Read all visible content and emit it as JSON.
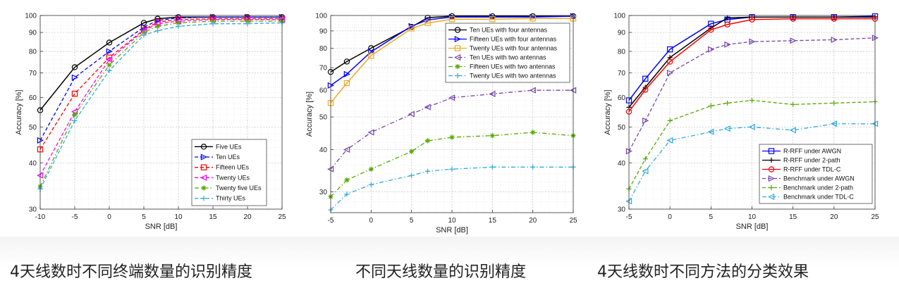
{
  "captions": [
    "4天线数时不同终端数量的识别精度",
    "不同天线数量的识别精度",
    "4天线数时不同方法的分类效果"
  ],
  "chart_data": [
    {
      "type": "line",
      "xlabel": "SNR [dB]",
      "ylabel": "Accuracy [%]",
      "y_scale": "log",
      "xlim": [
        -10,
        25
      ],
      "ylim": [
        30,
        100
      ],
      "x_ticks": [
        -10,
        -5,
        0,
        5,
        10,
        15,
        20,
        25
      ],
      "y_ticks": [
        30,
        40,
        50,
        60,
        70,
        80,
        90,
        100
      ],
      "grid": true,
      "legend_position": "bottom-right",
      "x": [
        -10,
        -5,
        0,
        5,
        7,
        10,
        15,
        20,
        25
      ],
      "series": [
        {
          "name": "Five UEs",
          "color": "#000000",
          "line": "solid",
          "marker": "circle",
          "values": [
            55.5,
            72.5,
            84.5,
            95.5,
            98,
            99,
            99,
            99,
            99
          ]
        },
        {
          "name": "Ten UEs",
          "color": "#0000ff",
          "line": "dash",
          "marker": "triangle-right",
          "values": [
            46,
            68,
            80,
            93,
            97,
            98.5,
            99,
            99,
            99
          ]
        },
        {
          "name": "Fifteen UEs",
          "color": "#ff0000",
          "line": "dash",
          "marker": "square",
          "values": [
            43.5,
            61.5,
            77,
            91.5,
            96,
            97.5,
            98,
            98,
            98
          ]
        },
        {
          "name": "Twenty UEs",
          "color": "#ff00ff",
          "line": "dash",
          "marker": "triangle-left",
          "values": [
            37,
            55,
            76,
            91,
            95,
            96.5,
            97.5,
            97.5,
            97.5
          ]
        },
        {
          "name": "Twenty five UEs",
          "color": "#55aa00",
          "line": "dashdot",
          "marker": "star",
          "values": [
            34.5,
            54,
            73.5,
            90,
            93.5,
            95.5,
            96.5,
            96.5,
            96.5
          ]
        },
        {
          "name": "Thirty UEs",
          "color": "#33aadd",
          "line": "dash",
          "marker": "plus",
          "values": [
            34,
            52,
            71,
            88.5,
            91,
            93.5,
            95,
            95,
            95.5
          ]
        }
      ]
    },
    {
      "type": "line",
      "xlabel": "SNR [dB]",
      "ylabel": "Accuracy [%]",
      "y_scale": "log",
      "xlim": [
        -5,
        25
      ],
      "ylim": [
        26,
        100
      ],
      "x_ticks": [
        -5,
        0,
        5,
        10,
        15,
        20,
        25
      ],
      "y_ticks": [
        30,
        40,
        50,
        60,
        70,
        80,
        90,
        100
      ],
      "grid": true,
      "legend_position": "top-right",
      "x": [
        -5,
        -3,
        0,
        5,
        7,
        10,
        15,
        20,
        25
      ],
      "series": [
        {
          "name": "Ten UEs with four antennas",
          "color": "#000000",
          "line": "solid",
          "marker": "circle",
          "values": [
            68,
            73,
            80,
            92.5,
            98.5,
            99.5,
            99.5,
            99.5,
            99.5
          ]
        },
        {
          "name": "Fifteen UEs with four antennas",
          "color": "#0000ff",
          "line": "solid",
          "marker": "triangle-right",
          "values": [
            62,
            67,
            78,
            93,
            97,
            99,
            99,
            99,
            99.5
          ]
        },
        {
          "name": "Twenty UEs with four antennas",
          "color": "#eeaa22",
          "line": "solid",
          "marker": "square",
          "values": [
            55,
            63,
            76,
            91.5,
            95,
            97.5,
            97.5,
            98,
            98
          ]
        },
        {
          "name": "Ten UEs with two antennas",
          "color": "#7744aa",
          "line": "dashdot",
          "marker": "triangle-left",
          "values": [
            35,
            40,
            45,
            51,
            53.5,
            57,
            58.5,
            60,
            60
          ]
        },
        {
          "name": "Fifteen UEs with two antennas",
          "color": "#55aa00",
          "line": "dashdot",
          "marker": "star",
          "values": [
            29,
            32.5,
            35,
            39.5,
            42.5,
            43.5,
            44,
            45,
            44
          ]
        },
        {
          "name": "Twenty UEs with two antennas",
          "color": "#33aadd",
          "line": "dashdot",
          "marker": "plus",
          "values": [
            26.5,
            29.5,
            31.5,
            33.5,
            34.5,
            35,
            35.5,
            35.5,
            35.5
          ]
        }
      ]
    },
    {
      "type": "line",
      "xlabel": "SNR [dB]",
      "ylabel": "Accuracy [%]",
      "y_scale": "log",
      "xlim": [
        -5,
        25
      ],
      "ylim": [
        30,
        100
      ],
      "x_ticks": [
        -5,
        0,
        5,
        10,
        15,
        20,
        25
      ],
      "y_ticks": [
        30,
        40,
        50,
        60,
        70,
        80,
        90,
        100
      ],
      "grid": true,
      "legend_position": "bottom-right",
      "x": [
        -5,
        -3,
        0,
        5,
        7,
        10,
        15,
        20,
        25
      ],
      "series": [
        {
          "name": "R-RFF under AWGN",
          "color": "#0000ff",
          "line": "solid",
          "marker": "square",
          "values": [
            59,
            67.5,
            81,
            95,
            97.5,
            99,
            99,
            99,
            99.5
          ]
        },
        {
          "name": "R-RFF under 2-path",
          "color": "#000000",
          "line": "solid",
          "marker": "plus",
          "values": [
            56.5,
            64,
            77,
            92.5,
            98.5,
            99,
            99,
            99,
            99
          ]
        },
        {
          "name": "R-RFF under TDL-C",
          "color": "#ff0000",
          "line": "solid",
          "marker": "circle",
          "values": [
            55,
            63,
            75,
            91.5,
            94.5,
            97.5,
            98,
            98,
            98
          ]
        },
        {
          "name": "Benchmark under AWGN",
          "color": "#7744aa",
          "line": "dash",
          "marker": "triangle-right",
          "values": [
            43,
            52,
            70,
            81,
            83.5,
            85,
            85.5,
            86,
            87
          ]
        },
        {
          "name": "Benchmark under 2-path",
          "color": "#55aa00",
          "line": "dash",
          "marker": "plus",
          "values": [
            34,
            41,
            52,
            57,
            58,
            59,
            57.5,
            58,
            58.5
          ]
        },
        {
          "name": "Benchmark under TDL-C",
          "color": "#33aadd",
          "line": "dashdot",
          "marker": "triangle-left",
          "values": [
            31.5,
            38,
            46,
            48.5,
            49.5,
            50,
            49,
            51,
            51
          ]
        }
      ]
    }
  ]
}
